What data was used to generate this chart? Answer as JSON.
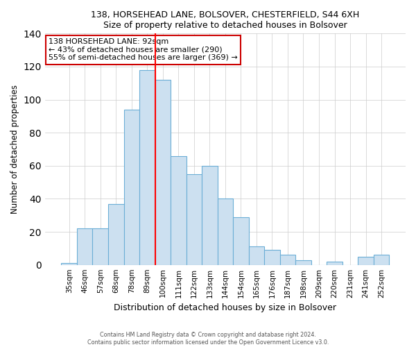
{
  "title1": "138, HORSEHEAD LANE, BOLSOVER, CHESTERFIELD, S44 6XH",
  "title2": "Size of property relative to detached houses in Bolsover",
  "xlabel": "Distribution of detached houses by size in Bolsover",
  "ylabel": "Number of detached properties",
  "bar_labels": [
    "35sqm",
    "46sqm",
    "57sqm",
    "68sqm",
    "78sqm",
    "89sqm",
    "100sqm",
    "111sqm",
    "122sqm",
    "133sqm",
    "144sqm",
    "154sqm",
    "165sqm",
    "176sqm",
    "187sqm",
    "198sqm",
    "209sqm",
    "220sqm",
    "231sqm",
    "241sqm",
    "252sqm"
  ],
  "bar_values": [
    1,
    22,
    22,
    37,
    94,
    118,
    112,
    66,
    55,
    60,
    40,
    29,
    11,
    9,
    6,
    3,
    0,
    2,
    0,
    5,
    6
  ],
  "bar_color": "#cce0f0",
  "bar_edge_color": "#6baed6",
  "vline_color": "red",
  "vline_bar_index": 5,
  "annotation_title": "138 HORSEHEAD LANE: 92sqm",
  "annotation_line1": "← 43% of detached houses are smaller (290)",
  "annotation_line2": "55% of semi-detached houses are larger (369) →",
  "box_facecolor": "#ffffff",
  "box_edgecolor": "#cc0000",
  "ylim": [
    0,
    140
  ],
  "yticks": [
    0,
    20,
    40,
    60,
    80,
    100,
    120,
    140
  ],
  "footer1": "Contains HM Land Registry data © Crown copyright and database right 2024.",
  "footer2": "Contains public sector information licensed under the Open Government Licence v3.0."
}
